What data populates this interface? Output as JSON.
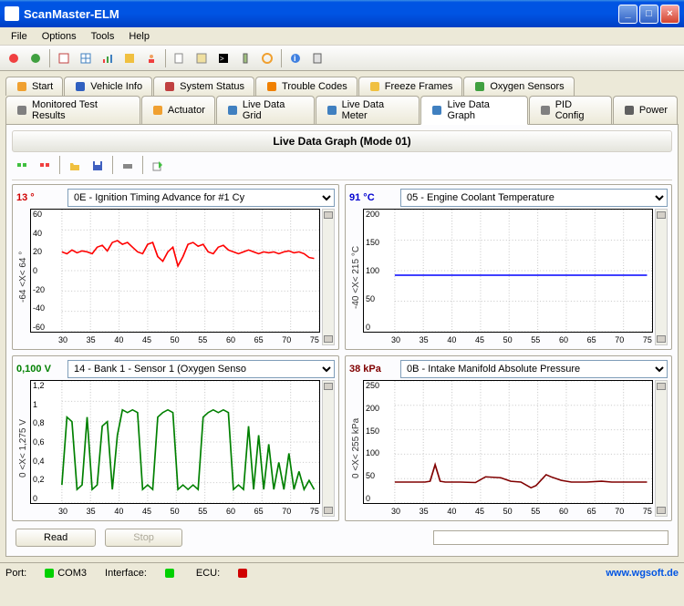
{
  "window": {
    "title": "ScanMaster-ELM"
  },
  "menu": {
    "items": [
      "File",
      "Options",
      "Tools",
      "Help"
    ]
  },
  "tabs_row1": [
    {
      "label": "Start",
      "icon": "home",
      "color": "#f0a030"
    },
    {
      "label": "Vehicle Info",
      "icon": "info",
      "color": "#3060c0"
    },
    {
      "label": "System Status",
      "icon": "status",
      "color": "#c04040"
    },
    {
      "label": "Trouble Codes",
      "icon": "warn",
      "color": "#f08000"
    },
    {
      "label": "Freeze Frames",
      "icon": "freeze",
      "color": "#f0c040"
    },
    {
      "label": "Oxygen Sensors",
      "icon": "o2",
      "color": "#40a040"
    }
  ],
  "tabs_row2": [
    {
      "label": "Monitored Test Results",
      "icon": "test",
      "color": "#808080"
    },
    {
      "label": "Actuator",
      "icon": "act",
      "color": "#f0a030"
    },
    {
      "label": "Live Data Grid",
      "icon": "grid",
      "color": "#4080c0"
    },
    {
      "label": "Live Data Meter",
      "icon": "meter",
      "color": "#4080c0"
    },
    {
      "label": "Live Data Graph",
      "icon": "graph",
      "color": "#4080c0",
      "active": true
    },
    {
      "label": "PID Config",
      "icon": "pid",
      "color": "#808080"
    },
    {
      "label": "Power",
      "icon": "power",
      "color": "#606060"
    }
  ],
  "panel_title": "Live Data Graph (Mode 01)",
  "buttons": {
    "read": "Read",
    "stop": "Stop"
  },
  "status": {
    "port_label": "Port:",
    "port": "COM3",
    "port_color": "#00d000",
    "iface_label": "Interface:",
    "iface_color": "#00d000",
    "ecu_label": "ECU:",
    "ecu_color": "#d00000",
    "link": "www.wgsoft.de"
  },
  "charts": [
    {
      "value": "13 °",
      "value_color": "#d00000",
      "pid": "0E - Ignition Timing Advance for #1 Cy",
      "y_label": "-64  <X<  64 °",
      "y_ticks": [
        "60",
        "40",
        "20",
        "0",
        "-20",
        "-40",
        "-60"
      ],
      "x_ticks": [
        "30",
        "35",
        "40",
        "45",
        "50",
        "55",
        "60",
        "65",
        "70",
        "75"
      ],
      "line_color": "#ff0000",
      "ylim": [
        -65,
        65
      ],
      "xlim": [
        27,
        78
      ],
      "data": [
        [
          27,
          20
        ],
        [
          28,
          18
        ],
        [
          29,
          22
        ],
        [
          30,
          19
        ],
        [
          31,
          21
        ],
        [
          32,
          20
        ],
        [
          33,
          18
        ],
        [
          34,
          25
        ],
        [
          35,
          27
        ],
        [
          36,
          21
        ],
        [
          37,
          30
        ],
        [
          38,
          32
        ],
        [
          39,
          28
        ],
        [
          40,
          30
        ],
        [
          41,
          25
        ],
        [
          42,
          20
        ],
        [
          43,
          18
        ],
        [
          44,
          28
        ],
        [
          45,
          30
        ],
        [
          46,
          15
        ],
        [
          47,
          10
        ],
        [
          48,
          20
        ],
        [
          49,
          25
        ],
        [
          50,
          5
        ],
        [
          51,
          15
        ],
        [
          52,
          28
        ],
        [
          53,
          30
        ],
        [
          54,
          26
        ],
        [
          55,
          28
        ],
        [
          56,
          20
        ],
        [
          57,
          18
        ],
        [
          58,
          25
        ],
        [
          59,
          27
        ],
        [
          60,
          22
        ],
        [
          61,
          20
        ],
        [
          62,
          18
        ],
        [
          63,
          20
        ],
        [
          64,
          22
        ],
        [
          65,
          20
        ],
        [
          66,
          18
        ],
        [
          67,
          20
        ],
        [
          68,
          19
        ],
        [
          69,
          20
        ],
        [
          70,
          18
        ],
        [
          71,
          20
        ],
        [
          72,
          21
        ],
        [
          73,
          19
        ],
        [
          74,
          20
        ],
        [
          75,
          18
        ],
        [
          76,
          14
        ],
        [
          77,
          13
        ]
      ]
    },
    {
      "value": "91 °C",
      "value_color": "#0000d0",
      "pid": "05 - Engine Coolant Temperature",
      "y_label": "-40  <X<  215 °C",
      "y_ticks": [
        "200",
        "150",
        "100",
        "50",
        "0"
      ],
      "x_ticks": [
        "30",
        "35",
        "40",
        "45",
        "50",
        "55",
        "60",
        "65",
        "70",
        "75"
      ],
      "line_color": "#0000ff",
      "ylim": [
        -20,
        220
      ],
      "xlim": [
        27,
        78
      ],
      "data": [
        [
          27,
          91
        ],
        [
          77,
          91
        ]
      ]
    },
    {
      "value": "0,100 V",
      "value_color": "#008000",
      "pid": "14 - Bank 1 - Sensor 1 (Oxygen Senso",
      "y_label": "0  <X<  1,275 V",
      "y_ticks": [
        "1,2",
        "1",
        "0,8",
        "0,6",
        "0,4",
        "0,2",
        "0"
      ],
      "x_ticks": [
        "30",
        "35",
        "40",
        "45",
        "50",
        "55",
        "60",
        "65",
        "70",
        "75"
      ],
      "line_color": "#008000",
      "ylim": [
        -0.05,
        1.3
      ],
      "xlim": [
        27,
        78
      ],
      "data": [
        [
          27,
          0.15
        ],
        [
          28,
          0.9
        ],
        [
          29,
          0.85
        ],
        [
          30,
          0.1
        ],
        [
          31,
          0.15
        ],
        [
          32,
          0.9
        ],
        [
          33,
          0.1
        ],
        [
          34,
          0.15
        ],
        [
          35,
          0.8
        ],
        [
          36,
          0.85
        ],
        [
          37,
          0.1
        ],
        [
          38,
          0.7
        ],
        [
          39,
          0.98
        ],
        [
          40,
          0.95
        ],
        [
          41,
          0.98
        ],
        [
          42,
          0.95
        ],
        [
          43,
          0.1
        ],
        [
          44,
          0.15
        ],
        [
          45,
          0.1
        ],
        [
          46,
          0.9
        ],
        [
          47,
          0.95
        ],
        [
          48,
          0.98
        ],
        [
          49,
          0.95
        ],
        [
          50,
          0.1
        ],
        [
          51,
          0.15
        ],
        [
          52,
          0.1
        ],
        [
          53,
          0.15
        ],
        [
          54,
          0.1
        ],
        [
          55,
          0.9
        ],
        [
          56,
          0.95
        ],
        [
          57,
          0.98
        ],
        [
          58,
          0.95
        ],
        [
          59,
          0.98
        ],
        [
          60,
          0.95
        ],
        [
          61,
          0.1
        ],
        [
          62,
          0.15
        ],
        [
          63,
          0.1
        ],
        [
          64,
          0.8
        ],
        [
          65,
          0.1
        ],
        [
          66,
          0.7
        ],
        [
          67,
          0.1
        ],
        [
          68,
          0.6
        ],
        [
          69,
          0.1
        ],
        [
          70,
          0.4
        ],
        [
          71,
          0.1
        ],
        [
          72,
          0.5
        ],
        [
          73,
          0.1
        ],
        [
          74,
          0.3
        ],
        [
          75,
          0.1
        ],
        [
          76,
          0.2
        ],
        [
          77,
          0.1
        ]
      ]
    },
    {
      "value": "38 kPa",
      "value_color": "#800000",
      "pid": "0B - Intake Manifold Absolute Pressure",
      "y_label": "0  <X<  255 kPa",
      "y_ticks": [
        "250",
        "200",
        "150",
        "100",
        "50",
        "0"
      ],
      "x_ticks": [
        "30",
        "35",
        "40",
        "45",
        "50",
        "55",
        "60",
        "65",
        "70",
        "75"
      ],
      "line_color": "#800000",
      "ylim": [
        -10,
        270
      ],
      "xlim": [
        27,
        78
      ],
      "data": [
        [
          27,
          38
        ],
        [
          33,
          38
        ],
        [
          34,
          40
        ],
        [
          35,
          78
        ],
        [
          36,
          40
        ],
        [
          37,
          38
        ],
        [
          40,
          38
        ],
        [
          43,
          37
        ],
        [
          45,
          50
        ],
        [
          48,
          48
        ],
        [
          50,
          40
        ],
        [
          52,
          38
        ],
        [
          54,
          25
        ],
        [
          55,
          30
        ],
        [
          57,
          55
        ],
        [
          58,
          50
        ],
        [
          60,
          42
        ],
        [
          62,
          38
        ],
        [
          65,
          38
        ],
        [
          68,
          40
        ],
        [
          70,
          38
        ],
        [
          77,
          38
        ]
      ]
    }
  ]
}
